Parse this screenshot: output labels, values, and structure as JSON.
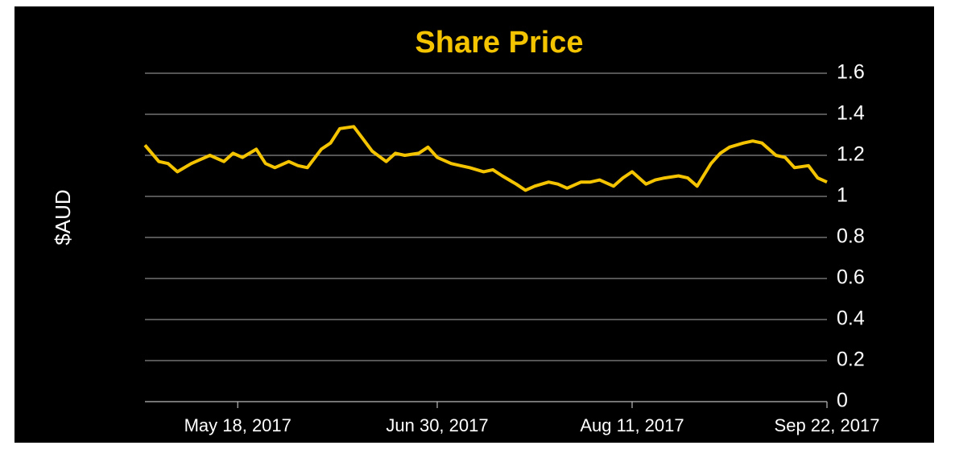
{
  "chart_data": {
    "type": "line",
    "title": "Share Price",
    "y_label": "$AUD",
    "x": [
      "2017-04-28",
      "2017-05-01",
      "2017-05-03",
      "2017-05-05",
      "2017-05-08",
      "2017-05-10",
      "2017-05-12",
      "2017-05-15",
      "2017-05-17",
      "2017-05-19",
      "2017-05-22",
      "2017-05-24",
      "2017-05-26",
      "2017-05-29",
      "2017-05-31",
      "2017-06-02",
      "2017-06-05",
      "2017-06-07",
      "2017-06-09",
      "2017-06-12",
      "2017-06-14",
      "2017-06-16",
      "2017-06-19",
      "2017-06-21",
      "2017-06-23",
      "2017-06-26",
      "2017-06-28",
      "2017-06-30",
      "2017-07-03",
      "2017-07-05",
      "2017-07-07",
      "2017-07-10",
      "2017-07-12",
      "2017-07-14",
      "2017-07-17",
      "2017-07-19",
      "2017-07-21",
      "2017-07-24",
      "2017-07-26",
      "2017-07-28",
      "2017-07-31",
      "2017-08-02",
      "2017-08-04",
      "2017-08-07",
      "2017-08-09",
      "2017-08-11",
      "2017-08-14",
      "2017-08-16",
      "2017-08-18",
      "2017-08-21",
      "2017-08-23",
      "2017-08-25",
      "2017-08-28",
      "2017-08-30",
      "2017-09-01",
      "2017-09-04",
      "2017-09-06",
      "2017-09-08",
      "2017-09-11",
      "2017-09-13",
      "2017-09-15",
      "2017-09-18",
      "2017-09-20",
      "2017-09-22"
    ],
    "series": [
      {
        "name": "Share Price",
        "color": "#f5c400",
        "values": [
          1.25,
          1.17,
          1.16,
          1.12,
          1.16,
          1.18,
          1.2,
          1.17,
          1.21,
          1.19,
          1.23,
          1.16,
          1.14,
          1.17,
          1.15,
          1.14,
          1.23,
          1.26,
          1.33,
          1.34,
          1.28,
          1.22,
          1.17,
          1.21,
          1.2,
          1.21,
          1.24,
          1.19,
          1.16,
          1.15,
          1.14,
          1.12,
          1.13,
          1.1,
          1.06,
          1.03,
          1.05,
          1.07,
          1.06,
          1.04,
          1.07,
          1.07,
          1.08,
          1.05,
          1.09,
          1.12,
          1.06,
          1.08,
          1.09,
          1.1,
          1.09,
          1.05,
          1.16,
          1.21,
          1.24,
          1.26,
          1.27,
          1.26,
          1.2,
          1.19,
          1.14,
          1.15,
          1.09,
          1.07
        ]
      }
    ],
    "xlim": [
      "2017-04-28",
      "2017-09-22"
    ],
    "xticks": [
      {
        "value": "2017-05-18",
        "label": "May 18, 2017"
      },
      {
        "value": "2017-06-30",
        "label": "Jun 30, 2017"
      },
      {
        "value": "2017-08-11",
        "label": "Aug 11, 2017"
      },
      {
        "value": "2017-09-22",
        "label": "Sep 22, 2017"
      }
    ],
    "ylim": [
      0,
      1.6
    ],
    "yticks": [
      0,
      0.2,
      0.4,
      0.6,
      0.8,
      1,
      1.2,
      1.4,
      1.6
    ],
    "grid": true,
    "y_axis_side": "right"
  }
}
